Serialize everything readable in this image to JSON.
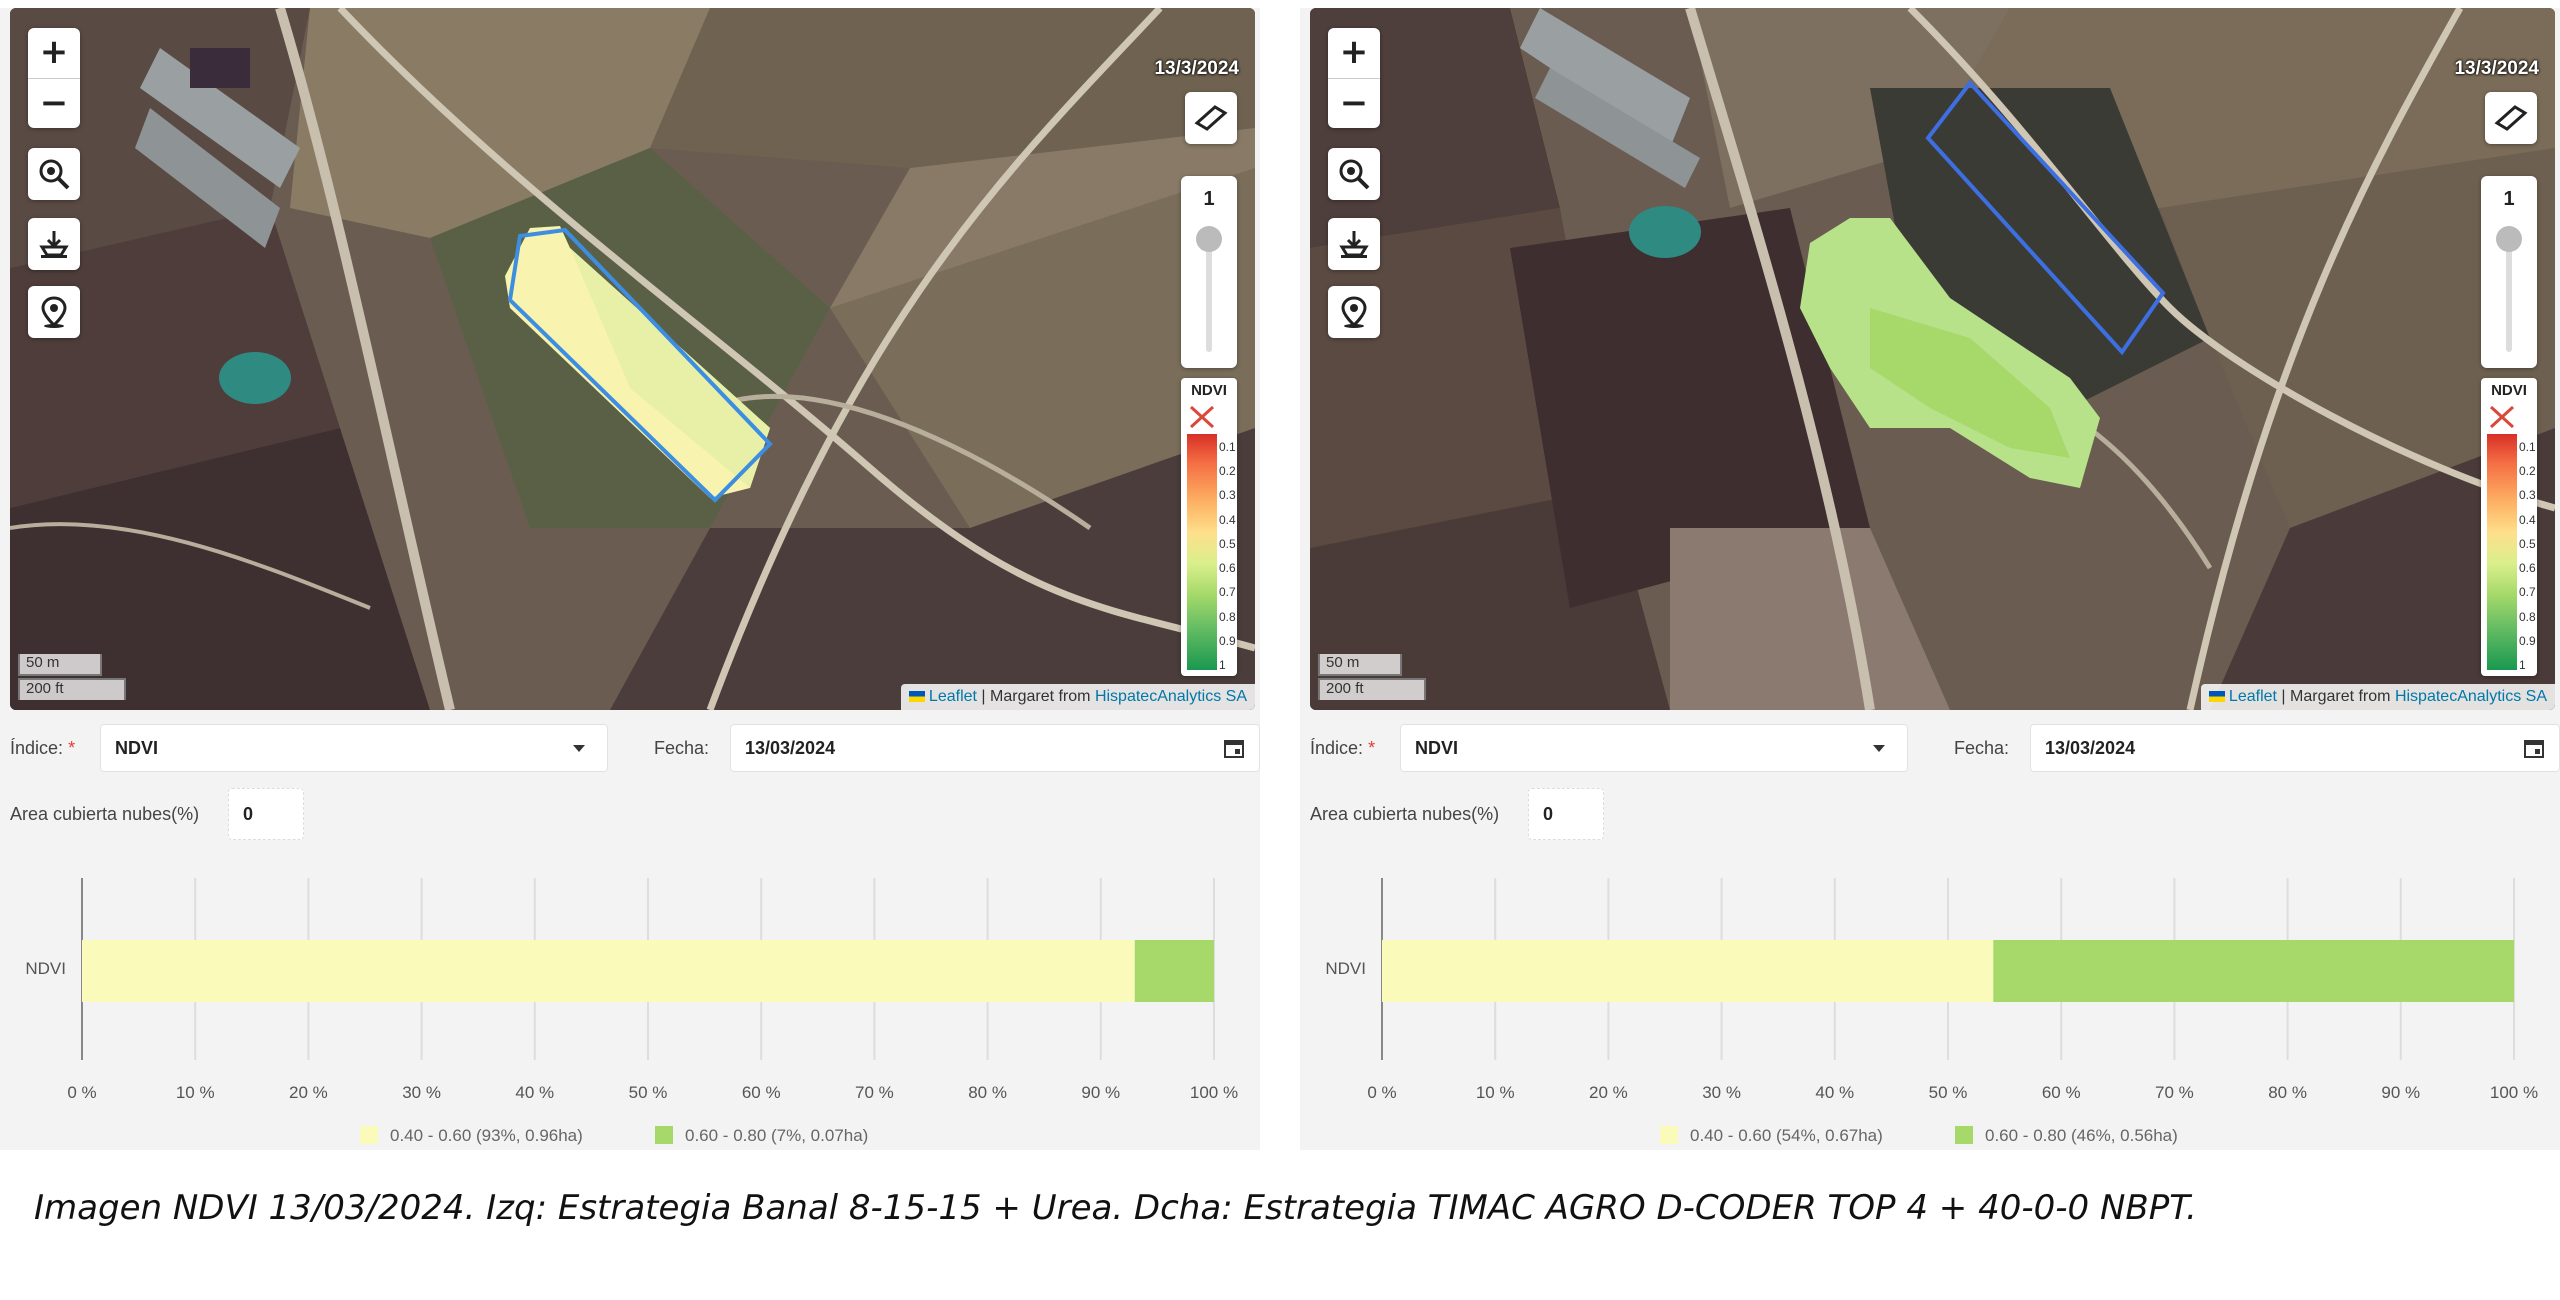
{
  "colors": {
    "band_low": "#fafbbb",
    "band_high": "#a7d96a",
    "field_outline": "#3d8ee0",
    "grid": "#dddddd",
    "axis": "#888888"
  },
  "panels": [
    {
      "map": {
        "zoom_in": "+",
        "zoom_out": "−",
        "tools": [
          "zoom-area-icon",
          "download-icon",
          "location-pin-icon"
        ],
        "date": "13/3/2024",
        "opacity_value": "1",
        "legend_title": "NDVI",
        "legend_ticks": [
          "0.1",
          "0.2",
          "0.3",
          "0.4",
          "0.5",
          "0.6",
          "0.7",
          "0.8",
          "0.9",
          "1"
        ],
        "scale_m": "50 m",
        "scale_ft": "200 ft",
        "attribution_leaflet": "Leaflet",
        "attribution_sep": " | Margaret from ",
        "attribution_org": "HispatecAnalytics SA"
      },
      "form": {
        "index_label": "Índice:",
        "required_mark": "*",
        "index_value": "NDVI",
        "date_label": "Fecha:",
        "date_value": "13/03/2024",
        "cloud_label": "Area cubierta nubes(%)",
        "cloud_value": "0"
      },
      "chart_data": {
        "type": "bar",
        "orientation": "horizontal-stacked",
        "categories": [
          "NDVI"
        ],
        "series": [
          {
            "name": "0.40 - 0.60 (93%, 0.96ha)",
            "values": [
              93
            ]
          },
          {
            "name": "0.60 - 0.80 (7%, 0.07ha)",
            "values": [
              7
            ]
          }
        ],
        "xlim": [
          0,
          100
        ],
        "x_ticks": [
          "0 %",
          "10 %",
          "20 %",
          "30 %",
          "40 %",
          "50 %",
          "60 %",
          "70 %",
          "80 %",
          "90 %",
          "100 %"
        ],
        "grid": true,
        "legend_position": "bottom"
      }
    },
    {
      "map": {
        "zoom_in": "+",
        "zoom_out": "−",
        "tools": [
          "zoom-area-icon",
          "download-icon",
          "location-pin-icon"
        ],
        "date": "13/3/2024",
        "opacity_value": "1",
        "legend_title": "NDVI",
        "legend_ticks": [
          "0.1",
          "0.2",
          "0.3",
          "0.4",
          "0.5",
          "0.6",
          "0.7",
          "0.8",
          "0.9",
          "1"
        ],
        "scale_m": "50 m",
        "scale_ft": "200 ft",
        "attribution_leaflet": "Leaflet",
        "attribution_sep": " | Margaret from ",
        "attribution_org": "HispatecAnalytics SA"
      },
      "form": {
        "index_label": "Índice:",
        "required_mark": "*",
        "index_value": "NDVI",
        "date_label": "Fecha:",
        "date_value": "13/03/2024",
        "cloud_label": "Area cubierta nubes(%)",
        "cloud_value": "0"
      },
      "chart_data": {
        "type": "bar",
        "orientation": "horizontal-stacked",
        "categories": [
          "NDVI"
        ],
        "series": [
          {
            "name": "0.40 - 0.60 (54%, 0.67ha)",
            "values": [
              54
            ]
          },
          {
            "name": "0.60 - 0.80 (46%, 0.56ha)",
            "values": [
              46
            ]
          }
        ],
        "xlim": [
          0,
          100
        ],
        "x_ticks": [
          "0 %",
          "10 %",
          "20 %",
          "30 %",
          "40 %",
          "50 %",
          "60 %",
          "70 %",
          "80 %",
          "90 %",
          "100 %"
        ],
        "grid": true,
        "legend_position": "bottom"
      }
    }
  ],
  "caption": "Imagen NDVI 13/03/2024. Izq: Estrategia Banal 8-15-15 + Urea. Dcha: Estrategia TIMAC AGRO D-CODER TOP 4 + 40-0-0 NBPT."
}
